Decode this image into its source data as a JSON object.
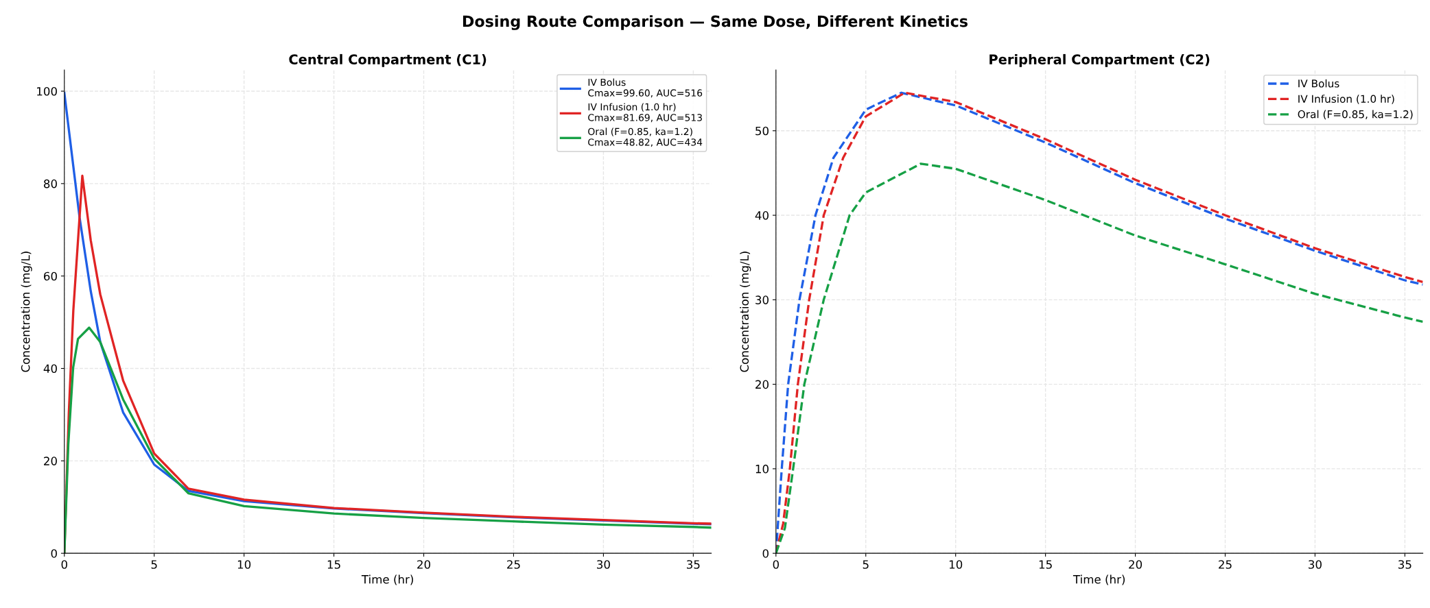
{
  "chart_data": [
    {
      "type": "line",
      "title": "Central Compartment (C1)",
      "xlabel": "Time (hr)",
      "ylabel": "Concentration (mg/L)",
      "annotations": [
        "Dosing Route Comparison — Same Dose, Different Kinetics"
      ],
      "xlim": [
        0,
        36
      ],
      "ylim": [
        0,
        104.6
      ],
      "xticks": [
        0,
        5,
        10,
        15,
        20,
        25,
        30,
        35
      ],
      "yticks": [
        0,
        20,
        40,
        60,
        80,
        100
      ],
      "grid": true,
      "legend": "top right",
      "line_style": "solid",
      "marker": "none",
      "series": [
        {
          "name": "IV Bolus\nCmax=99.60, AUC=516",
          "color": "#1f5fe6",
          "x": [
            0,
            0.85,
            1.47,
            2.0,
            3.27,
            5,
            6.9,
            10,
            15,
            20,
            25,
            30,
            35,
            36
          ],
          "values": [
            99.6,
            72.6,
            56.7,
            45.7,
            30.5,
            19.2,
            13.5,
            11.3,
            9.7,
            8.7,
            7.8,
            7.1,
            6.4,
            6.3
          ]
        },
        {
          "name": "IV Infusion (1.0 hr)\nCmax=81.69, AUC=513",
          "color": "#e02424",
          "x": [
            0,
            0.25,
            0.5,
            1.0,
            1.47,
            2.0,
            3.27,
            5,
            6.9,
            10,
            15,
            20,
            25,
            30,
            35,
            36
          ],
          "values": [
            0,
            30.5,
            52.6,
            81.69,
            67.7,
            56,
            37.4,
            21.6,
            14.0,
            11.6,
            9.8,
            8.8,
            7.9,
            7.2,
            6.5,
            6.4
          ]
        },
        {
          "name": "Oral (F=0.85, ka=1.2)\nCmax=48.82, AUC=434",
          "color": "#16a045",
          "x": [
            0,
            0.22,
            0.49,
            0.76,
            1.38,
            2.0,
            3.27,
            5,
            6.9,
            10,
            15,
            20,
            25,
            30,
            35,
            36
          ],
          "values": [
            0,
            23.6,
            40.2,
            46.4,
            48.82,
            45.7,
            33.3,
            20.5,
            13.0,
            10.2,
            8.6,
            7.65,
            6.9,
            6.2,
            5.7,
            5.55
          ]
        }
      ]
    },
    {
      "type": "line",
      "title": "Peripheral Compartment (C2)",
      "xlabel": "Time (hr)",
      "ylabel": "Concentration (mg/L)",
      "xlim": [
        0,
        36
      ],
      "ylim": [
        0,
        57.2
      ],
      "xticks": [
        0,
        5,
        10,
        15,
        20,
        25,
        30,
        35
      ],
      "yticks": [
        0,
        10,
        20,
        30,
        40,
        50
      ],
      "grid": true,
      "legend": "top right",
      "line_style": "dashed",
      "marker": "none",
      "series": [
        {
          "name": "IV Bolus",
          "color": "#1f5fe6",
          "x": [
            0,
            0.32,
            0.68,
            1.31,
            2.2,
            3.2,
            5,
            6.98,
            10,
            15,
            20,
            25,
            30,
            35,
            36
          ],
          "values": [
            0,
            9.9,
            20,
            30,
            40,
            46.8,
            52.5,
            54.5,
            53.0,
            48.6,
            43.8,
            39.6,
            35.8,
            32.3,
            31.8
          ]
        },
        {
          "name": "IV Infusion (1.0 hr)",
          "color": "#e02424",
          "x": [
            0,
            0.4,
            0.77,
            1.22,
            1.85,
            2.66,
            3.74,
            5,
            7.16,
            10,
            15,
            20,
            25,
            30,
            35,
            36
          ],
          "values": [
            0,
            3.5,
            9.9,
            20,
            30,
            40,
            46.8,
            51.7,
            54.5,
            53.4,
            49.0,
            44.2,
            40.0,
            36.1,
            32.7,
            32.1
          ]
        },
        {
          "name": "Oral (F=0.85, ka=1.2)",
          "color": "#16a045",
          "x": [
            0,
            0.5,
            0.95,
            1.58,
            2.66,
            4.1,
            5,
            8.06,
            10,
            15,
            20,
            25,
            30,
            35,
            36
          ],
          "values": [
            0,
            3.0,
            9.9,
            20,
            30,
            40,
            42.7,
            46.1,
            45.5,
            41.8,
            37.6,
            34.2,
            30.7,
            27.9,
            27.4
          ]
        }
      ]
    }
  ]
}
